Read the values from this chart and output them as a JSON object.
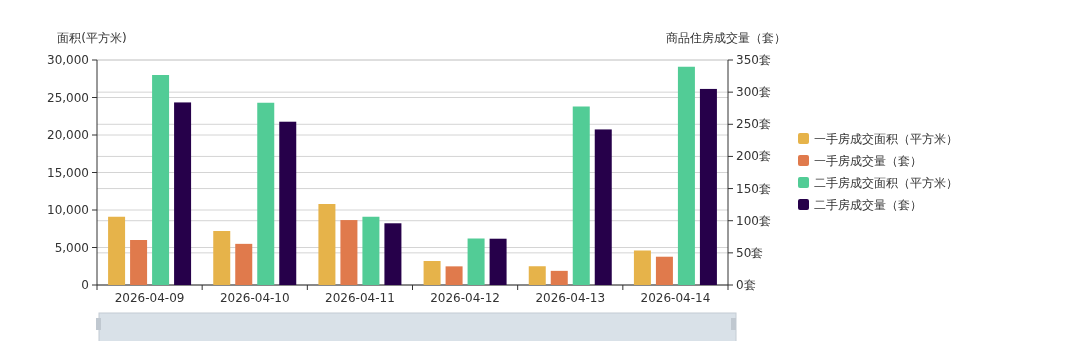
{
  "chart_data": {
    "type": "bar",
    "ylabel": "面积(平方米)",
    "y2label": "商品住房成交量（套）",
    "categories": [
      "2026-04-09",
      "2026-04-10",
      "2026-04-11",
      "2026-04-12",
      "2026-04-13",
      "2026-04-14"
    ],
    "series": [
      {
        "name": "一手房成交面积（平方米）",
        "color": "#e6b34a",
        "values": [
          9100,
          7200,
          10800,
          3200,
          2500,
          4600
        ]
      },
      {
        "name": "一手房成交量（套）",
        "color": "#e07a4c",
        "axis": "y2",
        "values": [
          70,
          64,
          101,
          29,
          22,
          44
        ]
      },
      {
        "name": "二手房成交面积（平方米）",
        "color": "#52cc96",
        "values": [
          28000,
          24300,
          9100,
          6200,
          23800,
          29100
        ]
      },
      {
        "name": "二手房成交量（套）",
        "color": "#26004a",
        "axis": "y2",
        "values": [
          284,
          254,
          96,
          72,
          242,
          305
        ]
      }
    ],
    "ylim": [
      0,
      30000
    ],
    "yticks": [
      0,
      {
        "value": 5000,
        "label": "5,000"
      },
      {
        "value": 10000,
        "label": "10,000"
      },
      {
        "value": 15000,
        "label": "15,000"
      },
      {
        "value": 20000,
        "label": "20,000"
      },
      {
        "value": 25000,
        "label": "25,000"
      },
      {
        "value": 30000,
        "label": "30,000"
      }
    ],
    "y2lim": [
      0,
      350
    ],
    "y2ticks": [
      {
        "value": 0,
        "label": "0套"
      },
      {
        "value": 50,
        "label": "50套"
      },
      {
        "value": 100,
        "label": "100套"
      },
      {
        "value": 150,
        "label": "150套"
      },
      {
        "value": 200,
        "label": "200套"
      },
      {
        "value": 250,
        "label": "250套"
      },
      {
        "value": 300,
        "label": "300套"
      },
      {
        "value": 350,
        "label": "350套"
      }
    ],
    "grid": true,
    "legend": "right"
  }
}
